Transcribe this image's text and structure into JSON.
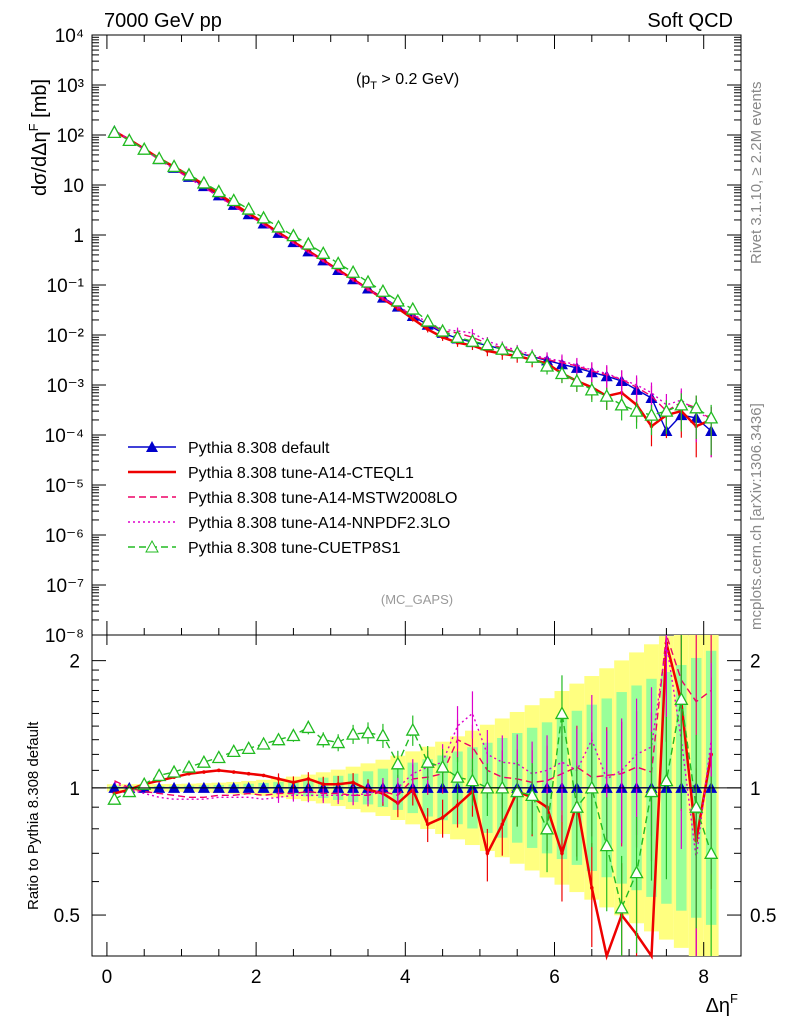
{
  "header": {
    "left": "7000 GeV pp",
    "right": "Soft QCD",
    "cut": "(p",
    "cut_sub": "T",
    "cut_rest": " > 0.2 GeV)",
    "analysis": "(MC_GAPS)",
    "side_top": "Rivet 3.1.10, ≥ 2.2M events",
    "side_bottom": "mcplots.cern.ch [arXiv:1306.3436]"
  },
  "axes": {
    "ylabel_top": "dσ/dΔη",
    "ylabel_top_sup": "F",
    "ylabel_top_unit": " [mb]",
    "ylabel_bottom": "Ratio to Pythia 8.308 default",
    "xlabel": "Δη",
    "xlabel_sup": "F",
    "x_ticks": [
      "0",
      "2",
      "4",
      "6",
      "8"
    ],
    "top_y_ticks": [
      "10⁴",
      "10³",
      "10²",
      "10",
      "1",
      "10⁻¹",
      "10⁻²",
      "10⁻³",
      "10⁻⁴",
      "10⁻⁵",
      "10⁻⁶",
      "10⁻⁷",
      "10⁻⁸"
    ],
    "bottom_y_ticks": [
      "2",
      "1",
      "0.5"
    ]
  },
  "legend": [
    {
      "label": "Pythia 8.308 default",
      "color": "#0000cc",
      "style": "solid",
      "marker": "filled-triangle"
    },
    {
      "label": "Pythia 8.308 tune-A14-CTEQL1",
      "color": "#ee0000",
      "style": "solid",
      "marker": "none"
    },
    {
      "label": "Pythia 8.308 tune-A14-MSTW2008LO",
      "color": "#ee0066",
      "style": "dashed",
      "marker": "none"
    },
    {
      "label": "Pythia 8.308 tune-A14-NNPDF2.3LO",
      "color": "#dd00cc",
      "style": "dotted",
      "marker": "none"
    },
    {
      "label": "Pythia 8.308 tune-CUETP8S1",
      "color": "#22bb22",
      "style": "dashed",
      "marker": "open-triangle"
    }
  ],
  "chart_data": [
    {
      "type": "line",
      "panel": "main",
      "yscale": "log",
      "xlim": [
        -0.2,
        8.5
      ],
      "ylim": [
        1e-08,
        10000.0
      ],
      "x": [
        0.1,
        0.3,
        0.5,
        0.7,
        0.9,
        1.1,
        1.3,
        1.5,
        1.7,
        1.9,
        2.1,
        2.3,
        2.5,
        2.7,
        2.9,
        3.1,
        3.3,
        3.5,
        3.7,
        3.9,
        4.1,
        4.3,
        4.5,
        4.7,
        4.9,
        5.1,
        5.3,
        5.5,
        5.7,
        5.9,
        6.1,
        6.3,
        6.5,
        6.7,
        6.9,
        7.1,
        7.3,
        7.5,
        7.7,
        7.9,
        8.1
      ],
      "series": [
        {
          "name": "Pythia 8.308 default",
          "values": [
            120,
            80,
            52,
            33,
            22,
            14.5,
            9.5,
            6.2,
            4.0,
            2.6,
            1.7,
            1.1,
            0.72,
            0.47,
            0.31,
            0.2,
            0.13,
            0.085,
            0.056,
            0.037,
            0.024,
            0.016,
            0.011,
            0.0085,
            0.0072,
            0.0062,
            0.0052,
            0.0044,
            0.0037,
            0.0031,
            0.0026,
            0.0022,
            0.0018,
            0.0015,
            0.0012,
            0.0008,
            0.00055,
            0.00012,
            0.00025,
            0.00022,
            0.00012
          ]
        },
        {
          "name": "Pythia 8.308 tune-A14-CTEQL1",
          "values": [
            118,
            81,
            53,
            34,
            23,
            15.5,
            10.2,
            6.6,
            4.2,
            2.7,
            1.75,
            1.12,
            0.73,
            0.48,
            0.31,
            0.2,
            0.13,
            0.083,
            0.053,
            0.034,
            0.021,
            0.013,
            0.009,
            0.007,
            0.0062,
            0.0048,
            0.0042,
            0.0038,
            0.0032,
            0.0027,
            0.0017,
            0.0012,
            0.0009,
            0.0006,
            0.0007,
            0.0004,
            0.00015,
            0.00025,
            0.0003,
            0.00015,
            0.0002
          ]
        },
        {
          "name": "Pythia 8.308 tune-A14-MSTW2008LO",
          "values": [
            125,
            80,
            51,
            32,
            21,
            13.8,
            9.0,
            5.9,
            3.8,
            2.5,
            1.62,
            1.06,
            0.7,
            0.46,
            0.3,
            0.19,
            0.125,
            0.082,
            0.054,
            0.036,
            0.025,
            0.017,
            0.012,
            0.011,
            0.009,
            0.0068,
            0.0055,
            0.0046,
            0.0038,
            0.0032,
            0.0028,
            0.0024,
            0.0019,
            0.0016,
            0.0013,
            0.0009,
            0.0006,
            0.0003,
            0.00045,
            0.00035,
            0.0002
          ]
        },
        {
          "name": "Pythia 8.308 tune-A14-NNPDF2.3LO",
          "values": [
            124,
            80,
            51,
            32,
            21,
            13.7,
            8.9,
            5.8,
            3.7,
            2.45,
            1.6,
            1.05,
            0.69,
            0.45,
            0.3,
            0.19,
            0.125,
            0.082,
            0.054,
            0.037,
            0.026,
            0.018,
            0.013,
            0.012,
            0.011,
            0.0075,
            0.006,
            0.005,
            0.004,
            0.0034,
            0.003,
            0.0025,
            0.002,
            0.0017,
            0.0013,
            0.001,
            0.0007,
            0.0004,
            0.0005,
            0.0003,
            0.0002
          ]
        },
        {
          "name": "Pythia 8.308 tune-CUETP8S1",
          "values": [
            113,
            78,
            52,
            34,
            23.5,
            16,
            11,
            7.4,
            4.9,
            3.3,
            2.2,
            1.45,
            0.97,
            0.66,
            0.43,
            0.27,
            0.18,
            0.115,
            0.075,
            0.048,
            0.033,
            0.019,
            0.012,
            0.009,
            0.0075,
            0.0064,
            0.0052,
            0.0044,
            0.0036,
            0.0024,
            0.0017,
            0.0012,
            0.0008,
            0.0006,
            0.0004,
            0.0003,
            0.00025,
            0.0003,
            0.0004,
            0.00035,
            0.00022
          ]
        }
      ]
    },
    {
      "type": "line",
      "panel": "ratio",
      "yscale": "log",
      "xlim": [
        -0.2,
        8.5
      ],
      "ylim": [
        0.4,
        2.3
      ],
      "x": [
        0.1,
        0.3,
        0.5,
        0.7,
        0.9,
        1.1,
        1.3,
        1.5,
        1.7,
        1.9,
        2.1,
        2.3,
        2.5,
        2.7,
        2.9,
        3.1,
        3.3,
        3.5,
        3.7,
        3.9,
        4.1,
        4.3,
        4.5,
        4.7,
        4.9,
        5.1,
        5.3,
        5.5,
        5.7,
        5.9,
        6.1,
        6.3,
        6.5,
        6.7,
        6.9,
        7.1,
        7.3,
        7.5,
        7.7,
        7.9,
        8.1
      ],
      "series": [
        {
          "name": "Pythia 8.308 default",
          "values": [
            1,
            1,
            1,
            1,
            1,
            1,
            1,
            1,
            1,
            1,
            1,
            1,
            1,
            1,
            1,
            1,
            1,
            1,
            1,
            1,
            1,
            1,
            1,
            1,
            1,
            1,
            1,
            1,
            1,
            1,
            1,
            1,
            1,
            1,
            1,
            1,
            1,
            1,
            1,
            1,
            1
          ]
        },
        {
          "name": "Pythia 8.308 tune-A14-CTEQL1",
          "values": [
            0.97,
            0.99,
            1.02,
            1.04,
            1.06,
            1.08,
            1.09,
            1.1,
            1.09,
            1.08,
            1.07,
            1.05,
            1.03,
            1.05,
            1.02,
            1.02,
            1.03,
            0.99,
            0.97,
            0.92,
            0.99,
            0.82,
            0.85,
            0.91,
            0.98,
            0.7,
            0.82,
            0.98,
            0.95,
            0.9,
            0.7,
            0.92,
            0.58,
            0.38,
            0.5,
            0.45,
            0.33,
            2.2,
            1.6,
            0.75,
            1.2
          ]
        },
        {
          "name": "Pythia 8.308 tune-A14-MSTW2008LO",
          "values": [
            1.04,
            1.0,
            0.98,
            0.97,
            0.96,
            0.95,
            0.95,
            0.96,
            0.96,
            0.97,
            0.96,
            0.97,
            0.97,
            0.98,
            0.97,
            0.97,
            0.96,
            0.96,
            0.98,
            0.96,
            1.05,
            1.06,
            1.08,
            1.3,
            1.25,
            1.1,
            1.06,
            1.05,
            1.03,
            1.04,
            1.08,
            1.12,
            1.06,
            1.07,
            1.08,
            1.12,
            1.09,
            2.5,
            1.8,
            1.6,
            1.7
          ]
        },
        {
          "name": "Pythia 8.308 tune-A14-NNPDF2.3LO",
          "values": [
            1.03,
            0.99,
            0.97,
            0.95,
            0.94,
            0.94,
            0.94,
            0.95,
            0.95,
            0.95,
            0.94,
            0.95,
            0.96,
            0.96,
            0.96,
            0.96,
            0.96,
            0.97,
            0.99,
            1.0,
            1.08,
            1.12,
            1.15,
            1.4,
            1.5,
            1.2,
            1.15,
            1.14,
            1.08,
            1.1,
            1.15,
            1.1,
            1.3,
            1.05,
            1.1,
            1.2,
            1.25,
            2.2,
            1.3,
            0.68,
            1.3
          ]
        },
        {
          "name": "Pythia 8.308 tune-CUETP8S1",
          "values": [
            0.94,
            0.98,
            1.02,
            1.07,
            1.09,
            1.12,
            1.15,
            1.18,
            1.22,
            1.24,
            1.27,
            1.3,
            1.33,
            1.39,
            1.3,
            1.28,
            1.34,
            1.35,
            1.33,
            1.14,
            1.37,
            1.15,
            1.12,
            1.06,
            1.04,
            1.0,
            1.0,
            0.98,
            0.96,
            0.8,
            1.5,
            0.9,
            1.0,
            0.73,
            0.52,
            0.63,
            0.98,
            1.04,
            1.62,
            0.9,
            0.7
          ]
        }
      ]
    }
  ]
}
